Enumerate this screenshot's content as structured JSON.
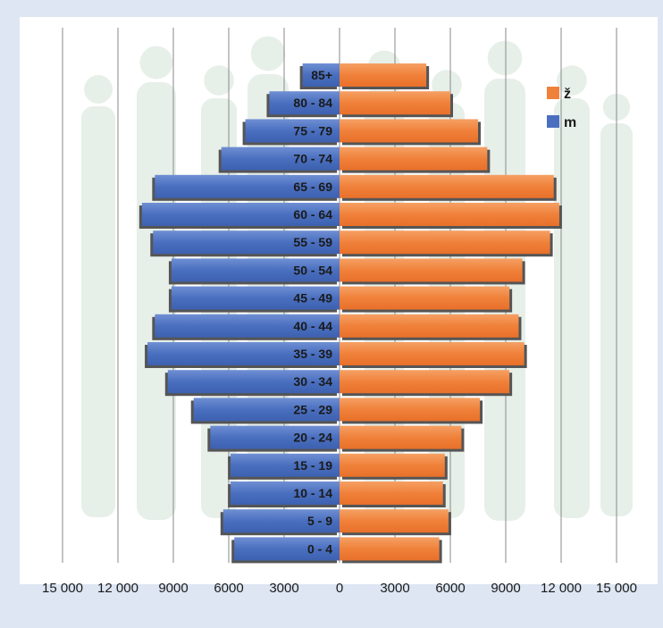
{
  "chart_data": {
    "type": "bar",
    "orientation": "horizontal",
    "layout": "population-pyramid",
    "categories": [
      "0 - 4",
      "5 - 9",
      "10 - 14",
      "15 - 19",
      "20 - 24",
      "25 - 29",
      "30 - 34",
      "35 - 39",
      "40 - 44",
      "45 - 49",
      "50 - 54",
      "55 - 59",
      "60 - 64",
      "65 - 69",
      "70 - 74",
      "75 - 79",
      "80 - 84",
      "85+"
    ],
    "series": [
      {
        "name": "ž",
        "side": "right",
        "color": "#f0813a",
        "values": [
          5400,
          5900,
          5600,
          5700,
          6600,
          7600,
          9200,
          10000,
          9700,
          9200,
          9900,
          11400,
          11900,
          11600,
          8000,
          7500,
          6000,
          4700
        ]
      },
      {
        "name": "m",
        "side": "left",
        "color": "#4a6fbf",
        "values": [
          5700,
          6300,
          5900,
          5900,
          7000,
          7900,
          9300,
          10400,
          10000,
          9100,
          9100,
          10100,
          10700,
          10000,
          6400,
          5100,
          3800,
          2000
        ]
      }
    ],
    "xlim": [
      -15000,
      15000
    ],
    "xticks": [
      {
        "value": -15000,
        "label": "15 000"
      },
      {
        "value": -12000,
        "label": "12 000"
      },
      {
        "value": -9000,
        "label": "9000"
      },
      {
        "value": -6000,
        "label": "6000"
      },
      {
        "value": -3000,
        "label": "3000"
      },
      {
        "value": 0,
        "label": "0"
      },
      {
        "value": 3000,
        "label": "3000"
      },
      {
        "value": 6000,
        "label": "6000"
      },
      {
        "value": 9000,
        "label": "9000"
      },
      {
        "value": 12000,
        "label": "12 000"
      },
      {
        "value": 15000,
        "label": "15 000"
      }
    ],
    "grid": "vertical",
    "legend": "top-right",
    "title": "",
    "xlabel": "",
    "ylabel": ""
  }
}
